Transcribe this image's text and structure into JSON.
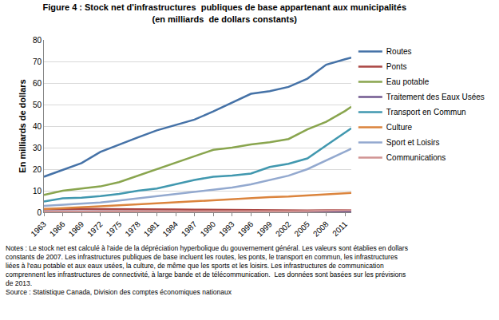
{
  "chart_data": {
    "type": "line",
    "title": [
      "Figure 4 : Stock net d'infrastructures  publiques de base appartenant aux municipalités",
      "(en milliards  de dollars constants)"
    ],
    "y_label": "En milliards de dollars",
    "notes": [
      "Notes : Le stock net est calculé à l'aide de la dépréciation hyperbolique du gouvernement général. Les valeurs sont établies en dollars",
      "constants de 2007. Les infrastructures publiques de base incluent les routes, les ponts, le transport en commun, les infrastructures",
      "liées à l'eau potable et aux eaux usées, la culture, de même que les sports et les loisirs. Les infrastructures de communication",
      "comprennent les infrastructures de connectivité, à large bande et de télécommunication.  Les données sont basées sur les prévisions",
      "de 2013.",
      "Source : Statistique Canada, Division des comptes économiques nationaux"
    ],
    "x": [
      1963,
      1966,
      1969,
      1972,
      1975,
      1978,
      1981,
      1984,
      1987,
      1990,
      1993,
      1996,
      1999,
      2002,
      2005,
      2008,
      2011,
      2012
    ],
    "xlim": [
      1963,
      2012
    ],
    "xticks": [
      1963,
      1966,
      1969,
      1972,
      1975,
      1978,
      1981,
      1984,
      1987,
      1990,
      1993,
      1996,
      1999,
      2002,
      2005,
      2008,
      2011
    ],
    "ylim": [
      0,
      80
    ],
    "yticks": [
      0,
      10,
      20,
      30,
      40,
      50,
      60,
      70,
      80
    ],
    "grid": true,
    "legend": "right",
    "series": [
      {
        "name": "Routes",
        "color": "#4572A7",
        "values": [
          16.5,
          19.6,
          22.8,
          28,
          31.5,
          34.8,
          38,
          40.4,
          43,
          46.8,
          51,
          55,
          56.2,
          58.2,
          62,
          68.5,
          71,
          71.8
        ]
      },
      {
        "name": "Ponts",
        "color": "#AA4643",
        "values": [
          1.5,
          1.6,
          1.6,
          1.5,
          1.5,
          1.4,
          1.3,
          1.3,
          1.2,
          1.1,
          1.0,
          0.9,
          0.8,
          0.8,
          0.8,
          0.9,
          1.0,
          1.0
        ]
      },
      {
        "name": "Eau potable",
        "color": "#89A54E",
        "values": [
          8,
          10,
          11,
          12,
          14,
          17,
          20,
          23,
          26,
          29,
          30,
          31.5,
          32.5,
          34,
          38.5,
          42,
          47,
          49
        ]
      },
      {
        "name": "Traitement des Eaux Usées",
        "color": "#71588F",
        "values": [
          0.5,
          0.5,
          0.4,
          0.4,
          0.4,
          0.3,
          0.3,
          0.3,
          0.3,
          0.2,
          0.2,
          0.2,
          0.2,
          0.2,
          0.2,
          0.2,
          0.2,
          0.2
        ]
      },
      {
        "name": "Transport en Commun",
        "color": "#4198AF",
        "values": [
          5,
          6.5,
          6.8,
          7.5,
          8.5,
          10,
          11,
          13,
          15,
          16.5,
          17,
          18,
          21,
          22.5,
          25,
          31,
          37,
          39
        ]
      },
      {
        "name": "Culture",
        "color": "#DB843D",
        "values": [
          1.5,
          2,
          2.3,
          2.8,
          3.2,
          3.7,
          4.2,
          4.6,
          5,
          5.6,
          6,
          6.5,
          7,
          7.3,
          7.8,
          8.3,
          8.8,
          9
        ]
      },
      {
        "name": "Sport et Loisirs",
        "color": "#93A9CF",
        "values": [
          3,
          3.5,
          4,
          4.5,
          5.5,
          6.5,
          7.5,
          8.5,
          9.5,
          10.5,
          11.5,
          13,
          15,
          17,
          20,
          24,
          28,
          29.5
        ]
      },
      {
        "name": "Communications",
        "color": "#D19392",
        "values": [
          0.3,
          0.3,
          0.3,
          0.3,
          0.3,
          0.3,
          0.3,
          0.3,
          0.3,
          0.3,
          0.3,
          0.3,
          0.4,
          0.5,
          0.6,
          0.7,
          0.9,
          1.0
        ]
      }
    ]
  }
}
